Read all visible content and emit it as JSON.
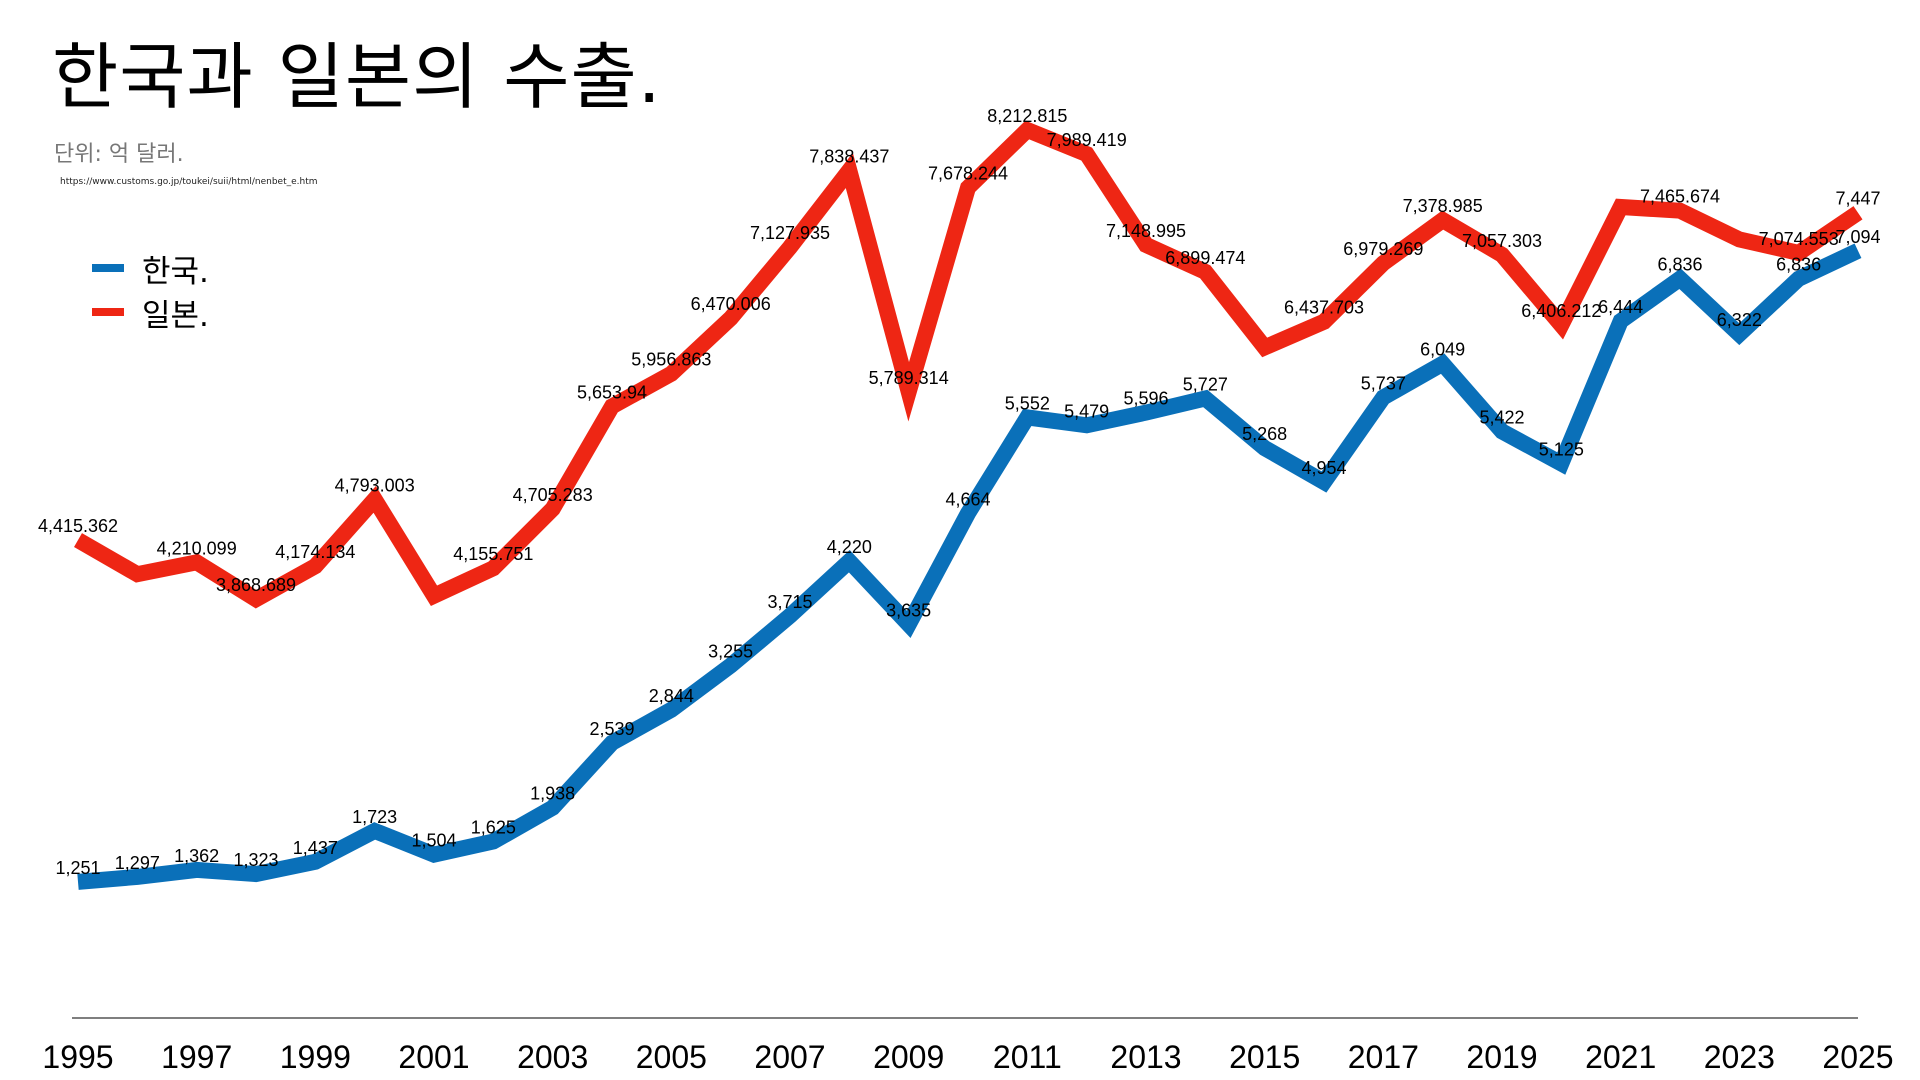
{
  "title": "한국과 일본의 수출.",
  "unit": "단위: 억 달러.",
  "source": "https://www.customs.go.jp/toukei/suii/html/nenbet_e.htm",
  "colors": {
    "korea": "#0a70b9",
    "japan": "#ee2614",
    "axis": "#555555"
  },
  "legend": [
    {
      "name": "한국.",
      "color": "#0a70b9"
    },
    {
      "name": "일본.",
      "color": "#ee2614"
    }
  ],
  "chart_data": {
    "type": "line",
    "title": "한국과 일본의 수출.",
    "xlabel": "",
    "ylabel": "단위: 억 달러.",
    "grid": false,
    "legend_position": "top-left",
    "x": [
      1995,
      1996,
      1997,
      1998,
      1999,
      2000,
      2001,
      2002,
      2003,
      2004,
      2005,
      2006,
      2007,
      2008,
      2009,
      2010,
      2011,
      2012,
      2013,
      2014,
      2015,
      2016,
      2017,
      2018,
      2019,
      2020,
      2021,
      2022,
      2023,
      2024,
      2025
    ],
    "xticks": [
      1995,
      1997,
      1999,
      2001,
      2003,
      2005,
      2007,
      2009,
      2011,
      2013,
      2015,
      2017,
      2019,
      2021,
      2023,
      2025
    ],
    "xlim": [
      1995,
      2025
    ],
    "ylim": [
      500,
      9000
    ],
    "series": [
      {
        "name": "한국.",
        "values": [
          1251,
          1297,
          1362,
          1323,
          1437,
          1723,
          1504,
          1625,
          1938,
          2539,
          2844,
          3255,
          3715,
          4220,
          3635,
          4664,
          5552,
          5479,
          5596,
          5727,
          5268,
          4954,
          5737,
          6049,
          5422,
          5125,
          6444,
          6836,
          6322,
          6836,
          7094
        ],
        "labels": [
          "1,251",
          "1,297",
          "1,362",
          "1,323",
          "1,437",
          "1,723",
          "1,504",
          "1,625",
          "1,938",
          "2,539",
          "2,844",
          "3,255",
          "3,715",
          "4,220",
          "3,635",
          "4,664",
          "5,552",
          "5,479",
          "5,596",
          "5,727",
          "5,268",
          "4,954",
          "5,737",
          "6,049",
          "5,422",
          "5,125",
          "6,444",
          "6,836",
          "6,322",
          "6,836",
          "7,094"
        ]
      },
      {
        "name": "일본.",
        "values": [
          4415.362,
          4100,
          4210.099,
          3868.689,
          4174.134,
          4793.003,
          3900,
          4155.751,
          4705.283,
          5653.94,
          5956.863,
          6470.006,
          7127.935,
          7838.437,
          5789.314,
          7678.244,
          8212.815,
          7989.419,
          7148.995,
          6899.474,
          6200,
          6437.703,
          6979.269,
          7378.985,
          7057.303,
          6406.212,
          7500,
          7465.674,
          7200,
          7074.553,
          7447
        ],
        "labels": [
          "4,415.362",
          "",
          "4,210.099",
          "3,868.689",
          "4,174.134",
          "4,793.003",
          "",
          "4,155.751",
          "4,705.283",
          "5,653.94",
          "5,956.863",
          "6,470.006",
          "7,127.935",
          "7,838.437",
          "5,789.314",
          "7,678.244",
          "8,212.815",
          "7,989.419",
          "7,148.995",
          "6,899.474",
          "",
          "6,437.703",
          "6,979.269",
          "7,378.985",
          "7,057.303",
          "6,406.212",
          "",
          "7,465.674",
          "",
          "7,074.553",
          "7,447"
        ]
      }
    ]
  }
}
